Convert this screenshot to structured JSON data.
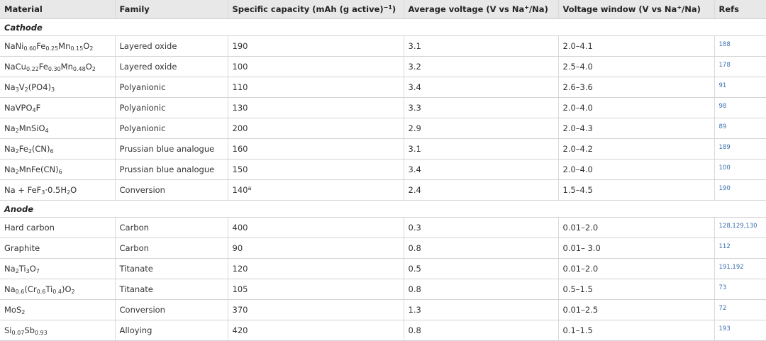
{
  "headers": {
    "material": "Material",
    "family": "Family",
    "capacity_pre": "Specific capacity (mAh (g active)",
    "capacity_sup": "−1",
    "capacity_post": ")",
    "voltage_pre": "Average voltage (V vs Na",
    "voltage_sup": "+",
    "voltage_post": "/Na)",
    "window_pre": "Voltage window (V vs Na",
    "window_sup": "+",
    "window_post": "/Na)",
    "refs": "Refs"
  },
  "sections": {
    "cathode": "Cathode",
    "anode": "Anode"
  },
  "cathode_rows": [
    {
      "material": [
        [
          "Na",
          ""
        ],
        [
          "Ni",
          "0.60"
        ],
        [
          "Fe",
          "0.25"
        ],
        [
          "Mn",
          "0.15"
        ],
        [
          "O",
          "2"
        ]
      ],
      "family": "Layered oxide",
      "capacity": "190",
      "capacity_sup": "",
      "voltage": "3.1",
      "window": "2.0–4.1",
      "refs": "188"
    },
    {
      "material": [
        [
          "Na",
          ""
        ],
        [
          "Cu",
          "0.22"
        ],
        [
          "Fe",
          "0.30"
        ],
        [
          "Mn",
          "0.48"
        ],
        [
          "O",
          "2"
        ]
      ],
      "family": "Layered oxide",
      "capacity": "100",
      "capacity_sup": "",
      "voltage": "3.2",
      "window": "2.5–4.0",
      "refs": "178"
    },
    {
      "material": [
        [
          "Na",
          "3"
        ],
        [
          "V",
          "2"
        ],
        [
          "(PO",
          ""
        ],
        [
          "4",
          ""
        ],
        [
          ")",
          "3"
        ]
      ],
      "family": "Polyanionic",
      "capacity": "110",
      "capacity_sup": "",
      "voltage": "3.4",
      "window": "2.6–3.6",
      "refs": "91"
    },
    {
      "material": [
        [
          "NaVPO",
          "4"
        ],
        [
          "F",
          ""
        ]
      ],
      "family": "Polyanionic",
      "capacity": "130",
      "capacity_sup": "",
      "voltage": "3.3",
      "window": "2.0–4.0",
      "refs": "98"
    },
    {
      "material": [
        [
          "Na",
          "2"
        ],
        [
          "MnSiO",
          "4"
        ]
      ],
      "family": "Polyanionic",
      "capacity": "200",
      "capacity_sup": "",
      "voltage": "2.9",
      "window": "2.0–4.3",
      "refs": "89"
    },
    {
      "material": [
        [
          "Na",
          "2"
        ],
        [
          "Fe",
          "2"
        ],
        [
          "(CN)",
          "6"
        ]
      ],
      "family": "Prussian blue analogue",
      "capacity": "160",
      "capacity_sup": "",
      "voltage": "3.1",
      "window": "2.0–4.2",
      "refs": "189"
    },
    {
      "material": [
        [
          "Na",
          "2"
        ],
        [
          "MnFe(CN)",
          "6"
        ]
      ],
      "family": "Prussian blue analogue",
      "capacity": "150",
      "capacity_sup": "",
      "voltage": "3.4",
      "window": "2.0–4.0",
      "refs": "100"
    },
    {
      "material": [
        [
          "Na + FeF",
          "3"
        ],
        [
          "·0.5H",
          "2"
        ],
        [
          "O",
          ""
        ]
      ],
      "family": "Conversion",
      "capacity": "140",
      "capacity_sup": "a",
      "voltage": "2.4",
      "window": "1.5–4.5",
      "refs": "190"
    }
  ],
  "anode_rows": [
    {
      "material": [
        [
          "Hard carbon",
          ""
        ]
      ],
      "family": "Carbon",
      "capacity": "400",
      "capacity_sup": "",
      "voltage": "0.3",
      "window": "0.01–2.0",
      "refs": "128,129,130"
    },
    {
      "material": [
        [
          "Graphite",
          ""
        ]
      ],
      "family": "Carbon",
      "capacity": "90",
      "capacity_sup": "",
      "voltage": "0.8",
      "window": "0.01– 3.0",
      "refs": "112"
    },
    {
      "material": [
        [
          "Na",
          "2"
        ],
        [
          "Ti",
          "3"
        ],
        [
          "O",
          "7"
        ]
      ],
      "family": "Titanate",
      "capacity": "120",
      "capacity_sup": "",
      "voltage": "0.5",
      "window": "0.01–2.0",
      "refs": "191,192"
    },
    {
      "material": [
        [
          "Na",
          "0.6"
        ],
        [
          "(Cr",
          "0.6"
        ],
        [
          "Ti",
          "0.4"
        ],
        [
          ")O",
          "2"
        ]
      ],
      "family": "Titanate",
      "capacity": "105",
      "capacity_sup": "",
      "voltage": "0.8",
      "window": "0.5–1.5",
      "refs": "73"
    },
    {
      "material": [
        [
          "MoS",
          "2"
        ]
      ],
      "family": "Conversion",
      "capacity": "370",
      "capacity_sup": "",
      "voltage": "1.3",
      "window": "0.01–2.5",
      "refs": "72"
    },
    {
      "material": [
        [
          "Si",
          "0.07"
        ],
        [
          "Sb",
          "0.93"
        ]
      ],
      "family": "Alloying",
      "capacity": "420",
      "capacity_sup": "",
      "voltage": "0.8",
      "window": "0.1–1.5",
      "refs": "193"
    }
  ]
}
